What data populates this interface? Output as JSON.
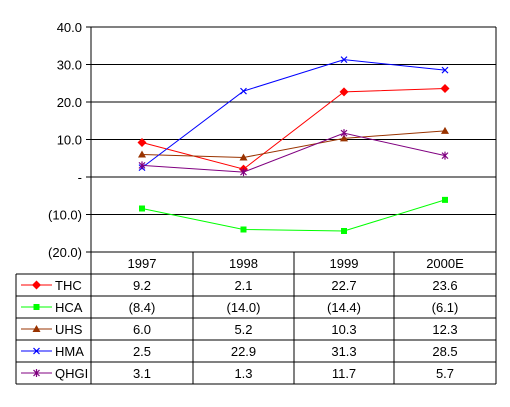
{
  "chart_data": {
    "type": "line",
    "title": "",
    "xlabel": "",
    "ylabel": "",
    "categories": [
      "1997",
      "1998",
      "1999",
      "2000E"
    ],
    "ylim": [
      -20,
      40
    ],
    "y_ticks": [
      40,
      30,
      20,
      10,
      0,
      -10,
      -20
    ],
    "y_tick_labels": [
      "40.0",
      "30.0",
      "20.0",
      "10.0",
      "-",
      "(10.0)",
      "(20.0)"
    ],
    "grid": true,
    "legend": "data-table-below",
    "series": [
      {
        "name": "THC",
        "color": "#ff0000",
        "marker": "diamond",
        "values": [
          9.2,
          2.1,
          22.7,
          23.6
        ],
        "labels": [
          "9.2",
          "2.1",
          "22.7",
          "23.6"
        ]
      },
      {
        "name": "HCA",
        "color": "#00ff00",
        "marker": "square",
        "values": [
          -8.4,
          -14.0,
          -14.4,
          -6.1
        ],
        "labels": [
          "(8.4)",
          "(14.0)",
          "(14.4)",
          "(6.1)"
        ]
      },
      {
        "name": "UHS",
        "color": "#993300",
        "marker": "triangle",
        "values": [
          6.0,
          5.2,
          10.3,
          12.3
        ],
        "labels": [
          "6.0",
          "5.2",
          "10.3",
          "12.3"
        ]
      },
      {
        "name": "HMA",
        "color": "#0000ff",
        "marker": "x",
        "values": [
          2.5,
          22.9,
          31.3,
          28.5
        ],
        "labels": [
          "2.5",
          "22.9",
          "31.3",
          "28.5"
        ]
      },
      {
        "name": "QHGI",
        "color": "#800080",
        "marker": "star",
        "values": [
          3.1,
          1.3,
          11.7,
          5.7
        ],
        "labels": [
          "3.1",
          "1.3",
          "11.7",
          "5.7"
        ]
      }
    ]
  }
}
